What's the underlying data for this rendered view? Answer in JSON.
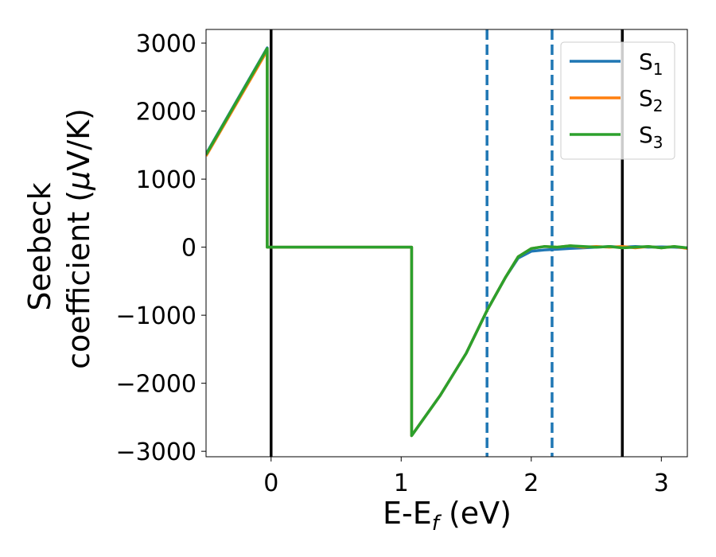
{
  "chart_data": {
    "type": "line",
    "xlabel_main": "E-E",
    "xlabel_sub": "f",
    "xlabel_unit": " (eV)",
    "ylabel_line1": "Seebeck",
    "ylabel_line2": "coefficient  (",
    "ylabel_mu": "μ",
    "ylabel_unit": "V/K)",
    "xlim": [
      -0.5,
      3.2
    ],
    "ylim": [
      -3080,
      3200
    ],
    "xticks": [
      0,
      1,
      2,
      3
    ],
    "xtick_labels": [
      "0",
      "1",
      "2",
      "3"
    ],
    "yticks": [
      3000,
      2000,
      1000,
      0,
      -1000,
      -2000,
      -3000
    ],
    "ytick_labels": [
      "3000",
      "2000",
      "1000",
      "0",
      "−1000",
      "−2000",
      "−3000"
    ],
    "grid": false,
    "legend_position": "top-right",
    "vlines_solid": [
      0,
      2.7
    ],
    "vlines_dashed": [
      1.66,
      2.16
    ],
    "series": [
      {
        "name": "S",
        "subscript": "1",
        "color": "#1f77b4",
        "points": [
          [
            -0.5,
            1370
          ],
          [
            -0.03,
            2930
          ],
          [
            -0.03,
            0
          ],
          [
            1.08,
            0
          ],
          [
            1.08,
            -2770
          ],
          [
            1.3,
            -2180
          ],
          [
            1.5,
            -1560
          ],
          [
            1.66,
            -930
          ],
          [
            1.8,
            -450
          ],
          [
            1.9,
            -160
          ],
          [
            2.0,
            -60
          ],
          [
            2.1,
            -40
          ],
          [
            2.2,
            -30
          ],
          [
            2.3,
            -20
          ],
          [
            2.4,
            -10
          ],
          [
            2.5,
            0
          ],
          [
            2.6,
            10
          ],
          [
            2.7,
            0
          ],
          [
            2.8,
            10
          ],
          [
            2.9,
            0
          ],
          [
            3.0,
            5
          ],
          [
            3.1,
            0
          ],
          [
            3.2,
            -10
          ]
        ]
      },
      {
        "name": "S",
        "subscript": "2",
        "color": "#ff7f0e",
        "points": [
          [
            -0.5,
            1340
          ],
          [
            -0.03,
            2890
          ],
          [
            -0.03,
            0
          ],
          [
            1.08,
            0
          ],
          [
            1.08,
            -2770
          ],
          [
            1.3,
            -2180
          ],
          [
            1.5,
            -1560
          ],
          [
            1.66,
            -930
          ],
          [
            1.8,
            -450
          ],
          [
            1.9,
            -140
          ],
          [
            2.0,
            -20
          ],
          [
            2.1,
            10
          ],
          [
            2.2,
            0
          ],
          [
            2.3,
            20
          ],
          [
            2.4,
            0
          ],
          [
            2.5,
            10
          ],
          [
            2.6,
            0
          ],
          [
            2.7,
            10
          ],
          [
            2.8,
            -10
          ],
          [
            2.9,
            10
          ],
          [
            3.0,
            -10
          ],
          [
            3.1,
            10
          ],
          [
            3.2,
            -20
          ]
        ]
      },
      {
        "name": "S",
        "subscript": "3",
        "color": "#2ca02c",
        "points": [
          [
            -0.5,
            1360
          ],
          [
            -0.03,
            2920
          ],
          [
            -0.03,
            0
          ],
          [
            1.08,
            0
          ],
          [
            1.08,
            -2770
          ],
          [
            1.3,
            -2180
          ],
          [
            1.5,
            -1560
          ],
          [
            1.66,
            -930
          ],
          [
            1.8,
            -450
          ],
          [
            1.9,
            -140
          ],
          [
            2.0,
            -20
          ],
          [
            2.1,
            10
          ],
          [
            2.2,
            0
          ],
          [
            2.3,
            20
          ],
          [
            2.4,
            10
          ],
          [
            2.5,
            0
          ],
          [
            2.6,
            10
          ],
          [
            2.7,
            -10
          ],
          [
            2.8,
            0
          ],
          [
            2.9,
            10
          ],
          [
            3.0,
            -10
          ],
          [
            3.1,
            10
          ],
          [
            3.2,
            -10
          ]
        ]
      }
    ]
  }
}
